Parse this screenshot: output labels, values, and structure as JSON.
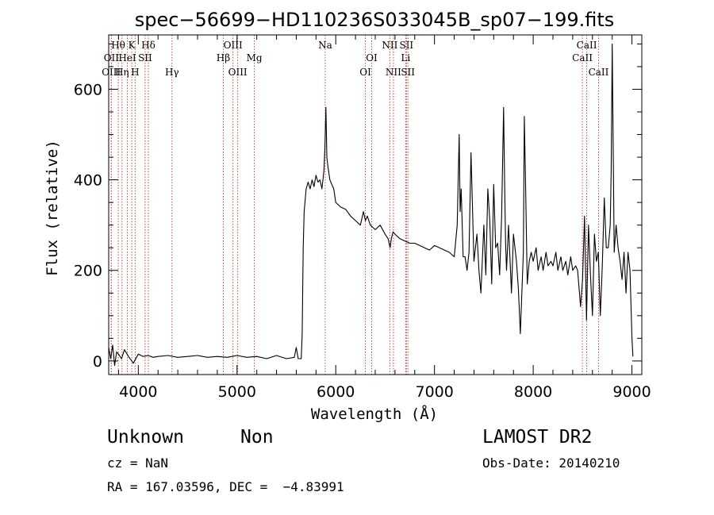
{
  "chart_data": {
    "type": "line",
    "title": "spec−56699−HD110236S033045B_sp07−199.fits",
    "xlabel": "Wavelength (Å)",
    "ylabel": "Flux (relative)",
    "xlim": [
      3700,
      9100
    ],
    "ylim": [
      -30,
      720
    ],
    "x_ticks": [
      4000,
      5000,
      6000,
      7000,
      8000,
      9000
    ],
    "y_ticks": [
      0,
      200,
      400,
      600
    ],
    "grid": false,
    "legend": "none",
    "series": [
      {
        "x": [
          3700,
          3720,
          3740,
          3760,
          3780,
          3800,
          3830,
          3860,
          3900,
          3950,
          4000,
          4050,
          4100,
          4150,
          4200,
          4300,
          4400,
          4500,
          4600,
          4700,
          4800,
          4900,
          5000,
          5100,
          5200,
          5300,
          5400,
          5500,
          5580,
          5600,
          5620,
          5650,
          5660,
          5670,
          5680,
          5700,
          5720,
          5740,
          5760,
          5780,
          5800,
          5820,
          5840,
          5860,
          5880,
          5890,
          5900,
          5910,
          5920,
          5940,
          5960,
          5980,
          6000,
          6050,
          6100,
          6150,
          6200,
          6250,
          6280,
          6300,
          6320,
          6350,
          6400,
          6450,
          6500,
          6530,
          6550,
          6563,
          6580,
          6600,
          6650,
          6700,
          6750,
          6800,
          6850,
          6900,
          6950,
          7000,
          7050,
          7100,
          7150,
          7200,
          7230,
          7250,
          7260,
          7270,
          7290,
          7310,
          7330,
          7350,
          7370,
          7400,
          7430,
          7450,
          7470,
          7500,
          7520,
          7540,
          7560,
          7580,
          7600,
          7620,
          7640,
          7660,
          7680,
          7700,
          7710,
          7720,
          7730,
          7750,
          7780,
          7800,
          7830,
          7850,
          7870,
          7900,
          7910,
          7920,
          7940,
          7960,
          7980,
          8000,
          8030,
          8050,
          8080,
          8100,
          8130,
          8150,
          8180,
          8200,
          8230,
          8250,
          8280,
          8300,
          8330,
          8350,
          8380,
          8400,
          8430,
          8450,
          8480,
          8500,
          8520,
          8540,
          8560,
          8580,
          8600,
          8620,
          8640,
          8660,
          8680,
          8700,
          8720,
          8740,
          8760,
          8780,
          8790,
          8800,
          8820,
          8840,
          8860,
          8880,
          8900,
          8920,
          8940,
          8960,
          8980,
          9000,
          9010
        ],
        "y": [
          30,
          5,
          35,
          -10,
          20,
          15,
          5,
          25,
          10,
          -5,
          15,
          10,
          12,
          8,
          10,
          12,
          8,
          10,
          12,
          8,
          10,
          8,
          12,
          8,
          10,
          5,
          12,
          5,
          8,
          30,
          5,
          5,
          60,
          250,
          330,
          380,
          395,
          380,
          400,
          385,
          410,
          395,
          400,
          380,
          420,
          470,
          560,
          450,
          430,
          400,
          390,
          380,
          350,
          340,
          335,
          320,
          310,
          300,
          330,
          310,
          320,
          300,
          290,
          300,
          280,
          270,
          250,
          270,
          285,
          280,
          270,
          265,
          260,
          260,
          255,
          250,
          245,
          255,
          250,
          245,
          240,
          230,
          300,
          500,
          330,
          380,
          230,
          230,
          200,
          240,
          460,
          220,
          280,
          200,
          150,
          300,
          190,
          380,
          310,
          170,
          390,
          250,
          260,
          190,
          320,
          560,
          400,
          260,
          200,
          300,
          150,
          280,
          220,
          160,
          60,
          240,
          540,
          420,
          170,
          220,
          240,
          220,
          250,
          200,
          230,
          200,
          240,
          210,
          220,
          210,
          240,
          200,
          230,
          200,
          220,
          190,
          230,
          200,
          210,
          200,
          120,
          180,
          320,
          90,
          300,
          190,
          100,
          280,
          220,
          240,
          100,
          210,
          360,
          250,
          250,
          300,
          420,
          700,
          240,
          300,
          250,
          220,
          180,
          240,
          150,
          240,
          200,
          50,
          10
        ]
      }
    ],
    "line_markers": [
      {
        "label": "Hθ",
        "x": 3797,
        "row": 0
      },
      {
        "label": "OII",
        "x": 3727,
        "row": 1
      },
      {
        "label": "OIII",
        "x": 3726,
        "row": 2
      },
      {
        "label": "K",
        "x": 3934,
        "row": 0
      },
      {
        "label": "HeI",
        "x": 3889,
        "row": 1
      },
      {
        "label": "Hη",
        "x": 3835,
        "row": 2
      },
      {
        "label": "Hδ",
        "x": 4102,
        "row": 0
      },
      {
        "label": "SII",
        "x": 4069,
        "row": 1
      },
      {
        "label": "H",
        "x": 3968,
        "row": 2
      },
      {
        "label": "Hγ",
        "x": 4341,
        "row": 2
      },
      {
        "label": "OIII",
        "x": 4959,
        "row": 0
      },
      {
        "label": "Hβ",
        "x": 4861,
        "row": 1
      },
      {
        "label": "OIII",
        "x": 5007,
        "row": 2
      },
      {
        "label": "Mg",
        "x": 5175,
        "row": 1
      },
      {
        "label": "Na",
        "x": 5893,
        "row": 0
      },
      {
        "label": "OI",
        "x": 6364,
        "row": 1
      },
      {
        "label": "OI",
        "x": 6300,
        "row": 2
      },
      {
        "label": "NII",
        "x": 6548,
        "row": 0
      },
      {
        "label": "NII",
        "x": 6584,
        "row": 2
      },
      {
        "label": "SII",
        "x": 6716,
        "row": 0
      },
      {
        "label": "Li",
        "x": 6708,
        "row": 1
      },
      {
        "label": "SII",
        "x": 6731,
        "row": 2
      },
      {
        "label": "CaII",
        "x": 8542,
        "row": 0
      },
      {
        "label": "CaII",
        "x": 8498,
        "row": 1
      },
      {
        "label": "CaII",
        "x": 8662,
        "row": 2
      }
    ]
  },
  "info": {
    "class": "Unknown",
    "subclass": "Non",
    "survey": "LAMOST DR2",
    "cz": "cz = NaN",
    "obs_date": "Obs-Date: 20140210",
    "radec": "RA = 167.03596, DEC =  −4.83991"
  }
}
